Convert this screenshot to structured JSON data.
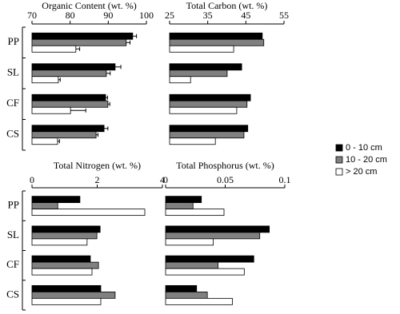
{
  "chart_data": [
    {
      "type": "bar",
      "orientation": "horizontal",
      "title": "Organic Content (wt. %)",
      "categories": [
        "PP",
        "SL",
        "CF",
        "CS"
      ],
      "xlim": [
        70,
        100
      ],
      "xticks": [
        70,
        80,
        90,
        100
      ],
      "series": [
        {
          "name": "0 - 10 cm",
          "color": "#000000",
          "values": [
            96.4,
            91.8,
            89.3,
            88.9
          ],
          "errors": [
            1,
            1.5,
            0.5,
            1
          ]
        },
        {
          "name": "10 - 20 cm",
          "color": "#808080",
          "values": [
            94.7,
            89.5,
            89.9,
            86.8
          ],
          "errors": [
            1,
            1,
            0.5,
            0.5
          ]
        },
        {
          "name": "> 20 cm",
          "color": "#ffffff",
          "values": [
            81.5,
            76.9,
            80.1,
            76.7
          ],
          "errors": [
            1,
            0.5,
            4,
            0.5
          ]
        }
      ]
    },
    {
      "type": "bar",
      "orientation": "horizontal",
      "title": "Total Carbon (wt. %)",
      "xlim": [
        25,
        55
      ],
      "xticks": [
        25,
        35,
        45,
        55
      ],
      "series": [
        {
          "color": "#000000",
          "values": [
            49.3,
            43.9,
            46.2,
            45.5
          ]
        },
        {
          "color": "#808080",
          "values": [
            49.7,
            40.1,
            45.3,
            44.5
          ]
        },
        {
          "color": "#ffffff",
          "values": [
            41.8,
            30.5,
            42.6,
            37.0
          ]
        }
      ]
    },
    {
      "type": "bar",
      "orientation": "horizontal",
      "title": "Total Nitrogen (wt. %)",
      "categories": [
        "PP",
        "SL",
        "CF",
        "CS"
      ],
      "xlim": [
        0,
        4
      ],
      "xticks": [
        0,
        2,
        4
      ],
      "series": [
        {
          "color": "#000000",
          "values": [
            1.47,
            2.09,
            1.79,
            2.11
          ]
        },
        {
          "color": "#808080",
          "values": [
            0.79,
            1.99,
            2.04,
            2.55
          ]
        },
        {
          "color": "#ffffff",
          "values": [
            3.46,
            1.69,
            1.84,
            2.11
          ]
        }
      ]
    },
    {
      "type": "bar",
      "orientation": "horizontal",
      "title": "Total Phosphorus (wt. %)",
      "xlim": [
        0,
        0.1
      ],
      "xticks": [
        0,
        0.05,
        0.1
      ],
      "series": [
        {
          "color": "#000000",
          "values": [
            0.03,
            0.087,
            0.074,
            0.026
          ]
        },
        {
          "color": "#808080",
          "values": [
            0.023,
            0.079,
            0.044,
            0.035
          ]
        },
        {
          "color": "#ffffff",
          "values": [
            0.049,
            0.04,
            0.066,
            0.056
          ]
        }
      ]
    }
  ]
}
